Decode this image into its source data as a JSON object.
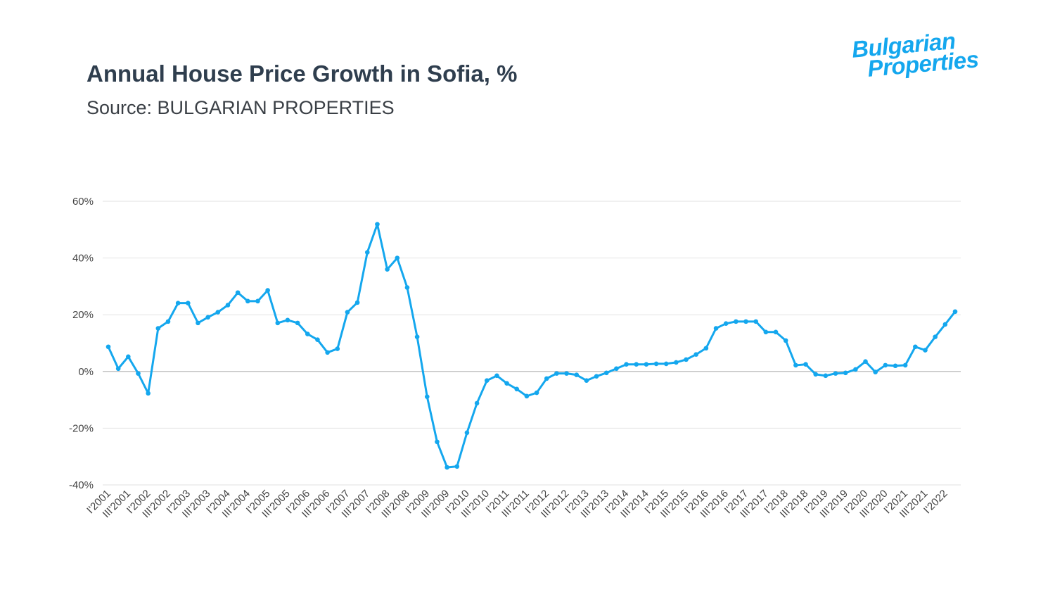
{
  "title": "Annual House Price Growth in Sofia, %",
  "subtitle": "Source: BULGARIAN PROPERTIES",
  "logo": {
    "line1": "Bulgarian",
    "line2": "Properties",
    "color": "#14a7ee"
  },
  "chart_data": {
    "type": "line",
    "title": "Annual House Price Growth in Sofia, %",
    "xlabel": "",
    "ylabel": "",
    "ylim": [
      -40,
      60
    ],
    "yticks": [
      60,
      40,
      20,
      0,
      -20,
      -40
    ],
    "ytick_labels": [
      "60%",
      "40%",
      "20%",
      "0%",
      "-20%",
      "-40%"
    ],
    "grid": true,
    "line_color": "#14a7ee",
    "x": [
      "I'2001",
      "II'2001",
      "III'2001",
      "IV'2001",
      "I'2002",
      "II'2002",
      "III'2002",
      "IV'2002",
      "I'2003",
      "II'2003",
      "III'2003",
      "IV'2003",
      "I'2004",
      "II'2004",
      "III'2004",
      "IV'2004",
      "I'2005",
      "II'2005",
      "III'2005",
      "IV'2005",
      "I'2006",
      "II'2006",
      "III'2006",
      "IV'2006",
      "I'2007",
      "II'2007",
      "III'2007",
      "IV'2007",
      "I'2008",
      "II'2008",
      "III'2008",
      "IV'2008",
      "I'2009",
      "II'2009",
      "III'2009",
      "IV'2009",
      "I'2010",
      "II'2010",
      "III'2010",
      "IV'2010",
      "I'2011",
      "II'2011",
      "III'2011",
      "IV'2011",
      "I'2012",
      "II'2012",
      "III'2012",
      "IV'2012",
      "I'2013",
      "II'2013",
      "III'2013",
      "IV'2013",
      "I'2014",
      "II'2014",
      "III'2014",
      "IV'2014",
      "I'2015",
      "II'2015",
      "III'2015",
      "IV'2015",
      "I'2016",
      "II'2016",
      "III'2016",
      "IV'2016",
      "I'2017",
      "II'2017",
      "III'2017",
      "IV'2017",
      "I'2018",
      "II'2018",
      "III'2018",
      "IV'2018",
      "I'2019",
      "II'2019",
      "III'2019",
      "IV'2019",
      "I'2020",
      "II'2020",
      "III'2020",
      "IV'2020",
      "I'2021",
      "II'2021",
      "III'2021",
      "IV'2021",
      "I'2022",
      "II'2022"
    ],
    "xtick_labels": [
      "I'2001",
      "III'2001",
      "I'2002",
      "III'2002",
      "I'2003",
      "III'2003",
      "I'2004",
      "III'2004",
      "I'2005",
      "III'2005",
      "I'2006",
      "III'2006",
      "I'2007",
      "III'2007",
      "I'2008",
      "III'2008",
      "I'2009",
      "III'2009",
      "I'2010",
      "III'2010",
      "I'2011",
      "III'2011",
      "I'2012",
      "III'2012",
      "I'2013",
      "III'2013",
      "I'2014",
      "III'2014",
      "I'2015",
      "III'2015",
      "I'2016",
      "III'2016",
      "I'2017",
      "III'2017",
      "I'2018",
      "III'2018",
      "I'2019",
      "III'2019",
      "I'2020",
      "III'2020",
      "I'2021",
      "III'2021",
      "I'2022"
    ],
    "values": [
      8.7,
      1.0,
      5.2,
      -0.7,
      -7.7,
      15.2,
      17.6,
      24.1,
      24.1,
      17.1,
      19.1,
      20.9,
      23.4,
      27.8,
      24.8,
      24.8,
      28.6,
      17.1,
      18.1,
      17.1,
      13.2,
      11.2,
      6.7,
      8.0,
      20.9,
      24.3,
      42.0,
      51.9,
      36.0,
      40.0,
      29.6,
      12.2,
      -8.9,
      -24.8,
      -33.8,
      -33.5,
      -21.6,
      -11.2,
      -3.2,
      -1.5,
      -4.2,
      -6.2,
      -8.7,
      -7.5,
      -2.5,
      -0.7,
      -0.7,
      -1.2,
      -3.2,
      -1.7,
      -0.5,
      1.0,
      2.5,
      2.5,
      2.5,
      2.7,
      2.7,
      3.2,
      4.2,
      6.0,
      8.2,
      15.2,
      16.9,
      17.6,
      17.6,
      17.6,
      13.9,
      13.9,
      10.9,
      2.2,
      2.5,
      -1.0,
      -1.5,
      -0.7,
      -0.5,
      0.7,
      3.5,
      -0.2,
      2.2,
      2.0,
      2.2,
      8.7,
      7.5,
      12.2,
      16.6,
      21.1
    ]
  }
}
